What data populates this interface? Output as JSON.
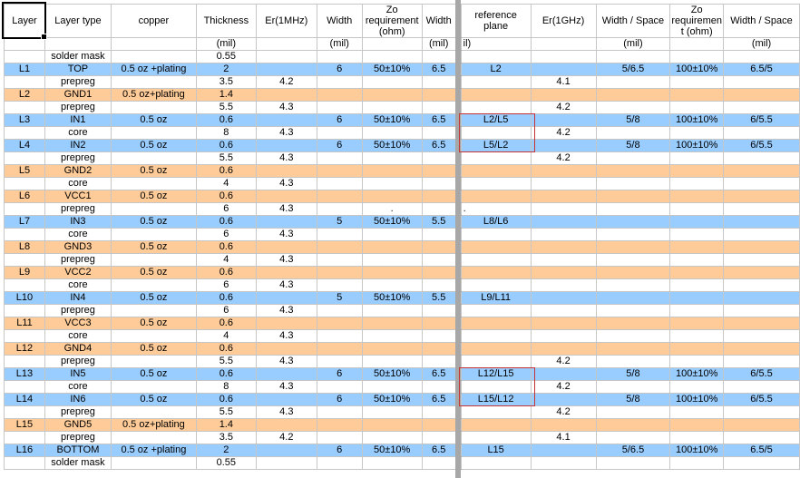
{
  "colors": {
    "signal_row_fill": "#99ccff",
    "plane_row_fill": "#ffcc99",
    "gridline": "#c6c6c6",
    "freeze_bar": "#a7a7a7",
    "highlight_box_border": "#c53538",
    "selection_border": "#000000"
  },
  "header": {
    "labels": [
      "Layer",
      "Layer type",
      "copper",
      "Thickness",
      "Er(1MHz)",
      "Width",
      "Zo requirement (ohm)",
      "Width",
      "reference plane",
      "Er(1GHz)",
      "Width / Space",
      "Zo requiremen t (ohm)",
      "Width / Space"
    ],
    "units": [
      "",
      "",
      "",
      "(mil)",
      "",
      "(mil)",
      "",
      "(mil)",
      "il)",
      "",
      "(mil)",
      "",
      "(mil)"
    ]
  },
  "rows": [
    {
      "cells": [
        "",
        "solder mask",
        "",
        "0.55",
        "",
        "",
        "",
        "",
        "",
        "",
        "",
        "",
        ""
      ]
    },
    {
      "style": "signal",
      "cells": [
        "L1",
        "TOP",
        "0.5 oz +plating",
        "2",
        "",
        "6",
        "50±10%",
        "6.5",
        "L2",
        "",
        "5/6.5",
        "100±10%",
        "6.5/5"
      ]
    },
    {
      "cells": [
        "",
        "prepreg",
        "",
        "3.5",
        "4.2",
        "",
        "",
        "",
        "",
        "4.1",
        "",
        "",
        ""
      ]
    },
    {
      "style": "plane",
      "cells": [
        "L2",
        "GND1",
        "0.5 oz+plating",
        "1.4",
        "",
        "",
        "",
        "",
        "",
        "",
        "",
        "",
        ""
      ]
    },
    {
      "cells": [
        "",
        "prepreg",
        "",
        "5.5",
        "4.3",
        "",
        "",
        "",
        "",
        "4.2",
        "",
        "",
        ""
      ]
    },
    {
      "style": "signal",
      "cells": [
        "L3",
        "IN1",
        "0.5 oz",
        "0.6",
        "",
        "6",
        "50±10%",
        "6.5",
        "L2/L5",
        "",
        "5/8",
        "100±10%",
        "6/5.5"
      ]
    },
    {
      "cells": [
        "",
        "core",
        "",
        "8",
        "4.3",
        "",
        "",
        "",
        "",
        "4.2",
        "",
        "",
        ""
      ]
    },
    {
      "style": "signal",
      "cells": [
        "L4",
        "IN2",
        "0.5 oz",
        "0.6",
        "",
        "6",
        "50±10%",
        "6.5",
        "L5/L2",
        "",
        "5/8",
        "100±10%",
        "6/5.5"
      ]
    },
    {
      "cells": [
        "",
        "prepreg",
        "",
        "5.5",
        "4.3",
        "",
        "",
        "",
        "",
        "4.2",
        "",
        "",
        ""
      ]
    },
    {
      "style": "plane",
      "cells": [
        "L5",
        "GND2",
        "0.5 oz",
        "0.6",
        "",
        "",
        "",
        "",
        "",
        "",
        "",
        "",
        ""
      ]
    },
    {
      "cells": [
        "",
        "core",
        "",
        "4",
        "4.3",
        "",
        "",
        "",
        "",
        "",
        "",
        "",
        ""
      ]
    },
    {
      "style": "plane",
      "cells": [
        "L6",
        "VCC1",
        "0.5 oz",
        "0.6",
        "",
        "",
        "",
        "",
        "",
        "",
        "",
        "",
        ""
      ]
    },
    {
      "cells": [
        "",
        "prepreg",
        "",
        "6",
        "4.3",
        "",
        ".",
        "",
        ".",
        "",
        "",
        "",
        ""
      ],
      "align_left": [
        8
      ]
    },
    {
      "style": "signal",
      "cells": [
        "L7",
        "IN3",
        "0.5 oz",
        "0.6",
        "",
        "5",
        "50±10%",
        "5.5",
        "L8/L6",
        "",
        "",
        "",
        ""
      ]
    },
    {
      "cells": [
        "",
        "core",
        "",
        "6",
        "4.3",
        "",
        "",
        "",
        "",
        "",
        "",
        "",
        ""
      ]
    },
    {
      "style": "plane",
      "cells": [
        "L8",
        "GND3",
        "0.5 oz",
        "0.6",
        "",
        "",
        "",
        "",
        "",
        "",
        "",
        "",
        ""
      ]
    },
    {
      "cells": [
        "",
        "prepreg",
        "",
        "4",
        "4.3",
        "",
        "",
        "",
        "",
        "",
        "",
        "",
        ""
      ]
    },
    {
      "style": "plane",
      "cells": [
        "L9",
        "VCC2",
        "0.5 oz",
        "0.6",
        "",
        "",
        "",
        "",
        "",
        "",
        "",
        "",
        ""
      ]
    },
    {
      "cells": [
        "",
        "core",
        "",
        "6",
        "4.3",
        "",
        "",
        "",
        "",
        "",
        "",
        "",
        ""
      ]
    },
    {
      "style": "signal",
      "cells": [
        "L10",
        "IN4",
        "0.5 oz",
        "0.6",
        "",
        "5",
        "50±10%",
        "5.5",
        "L9/L11",
        "",
        "",
        "",
        ""
      ]
    },
    {
      "cells": [
        "",
        "prepreg",
        "",
        "6",
        "4.3",
        "",
        "",
        "",
        "",
        "",
        "",
        "",
        ""
      ]
    },
    {
      "style": "plane",
      "cells": [
        "L11",
        "VCC3",
        "0.5 oz",
        "0.6",
        "",
        "",
        "",
        "",
        "",
        "",
        "",
        "",
        ""
      ]
    },
    {
      "cells": [
        "",
        "core",
        "",
        "4",
        "4.3",
        "",
        "",
        "",
        "",
        "",
        "",
        "",
        ""
      ]
    },
    {
      "style": "plane",
      "cells": [
        "L12",
        "GND4",
        "0.5 oz",
        "0.6",
        "",
        "",
        "",
        "",
        "",
        "",
        "",
        "",
        ""
      ]
    },
    {
      "cells": [
        "",
        "prepreg",
        "",
        "5.5",
        "4.3",
        "",
        "",
        "",
        "",
        "4.2",
        "",
        "",
        ""
      ]
    },
    {
      "style": "signal",
      "cells": [
        "L13",
        "IN5",
        "0.5 oz",
        "0.6",
        "",
        "6",
        "50±10%",
        "6.5",
        "L12/L15",
        "",
        "5/8",
        "100±10%",
        "6/5.5"
      ]
    },
    {
      "cells": [
        "",
        "core",
        "",
        "8",
        "4.3",
        "",
        "",
        "",
        "",
        "4.2",
        "",
        "",
        ""
      ]
    },
    {
      "style": "signal",
      "cells": [
        "L14",
        "IN6",
        "0.5 oz",
        "0.6",
        "",
        "6",
        "50±10%",
        "6.5",
        "L15/L12",
        "",
        "5/8",
        "100±10%",
        "6/5.5"
      ]
    },
    {
      "cells": [
        "",
        "prepreg",
        "",
        "5.5",
        "4.3",
        "",
        "",
        "",
        "",
        "4.2",
        "",
        "",
        ""
      ]
    },
    {
      "style": "plane",
      "cells": [
        "L15",
        "GND5",
        "0.5 oz+plating",
        "1.4",
        "",
        "",
        "",
        "",
        "",
        "",
        "",
        "",
        ""
      ]
    },
    {
      "cells": [
        "",
        "prepreg",
        "",
        "3.5",
        "4.2",
        "",
        "",
        "",
        "",
        "4.1",
        "",
        "",
        ""
      ]
    },
    {
      "style": "signal",
      "cells": [
        "L16",
        "BOTTOM",
        "0.5 oz +plating",
        "2",
        "",
        "6",
        "50±10%",
        "6.5",
        "L15",
        "",
        "5/6.5",
        "100±10%",
        "6.5/5"
      ]
    },
    {
      "cells": [
        "",
        "solder mask",
        "",
        "0.55",
        "",
        "",
        "",
        "",
        "",
        "",
        "",
        "",
        ""
      ]
    }
  ],
  "annotations": {
    "selected_cell_text": "Layer",
    "highlight_boxes": [
      {
        "column": "reference plane",
        "cells": [
          "L2/L5",
          "L5/L2"
        ]
      },
      {
        "column": "reference plane",
        "cells": [
          "L12/L15",
          "L15/L12"
        ]
      }
    ]
  }
}
